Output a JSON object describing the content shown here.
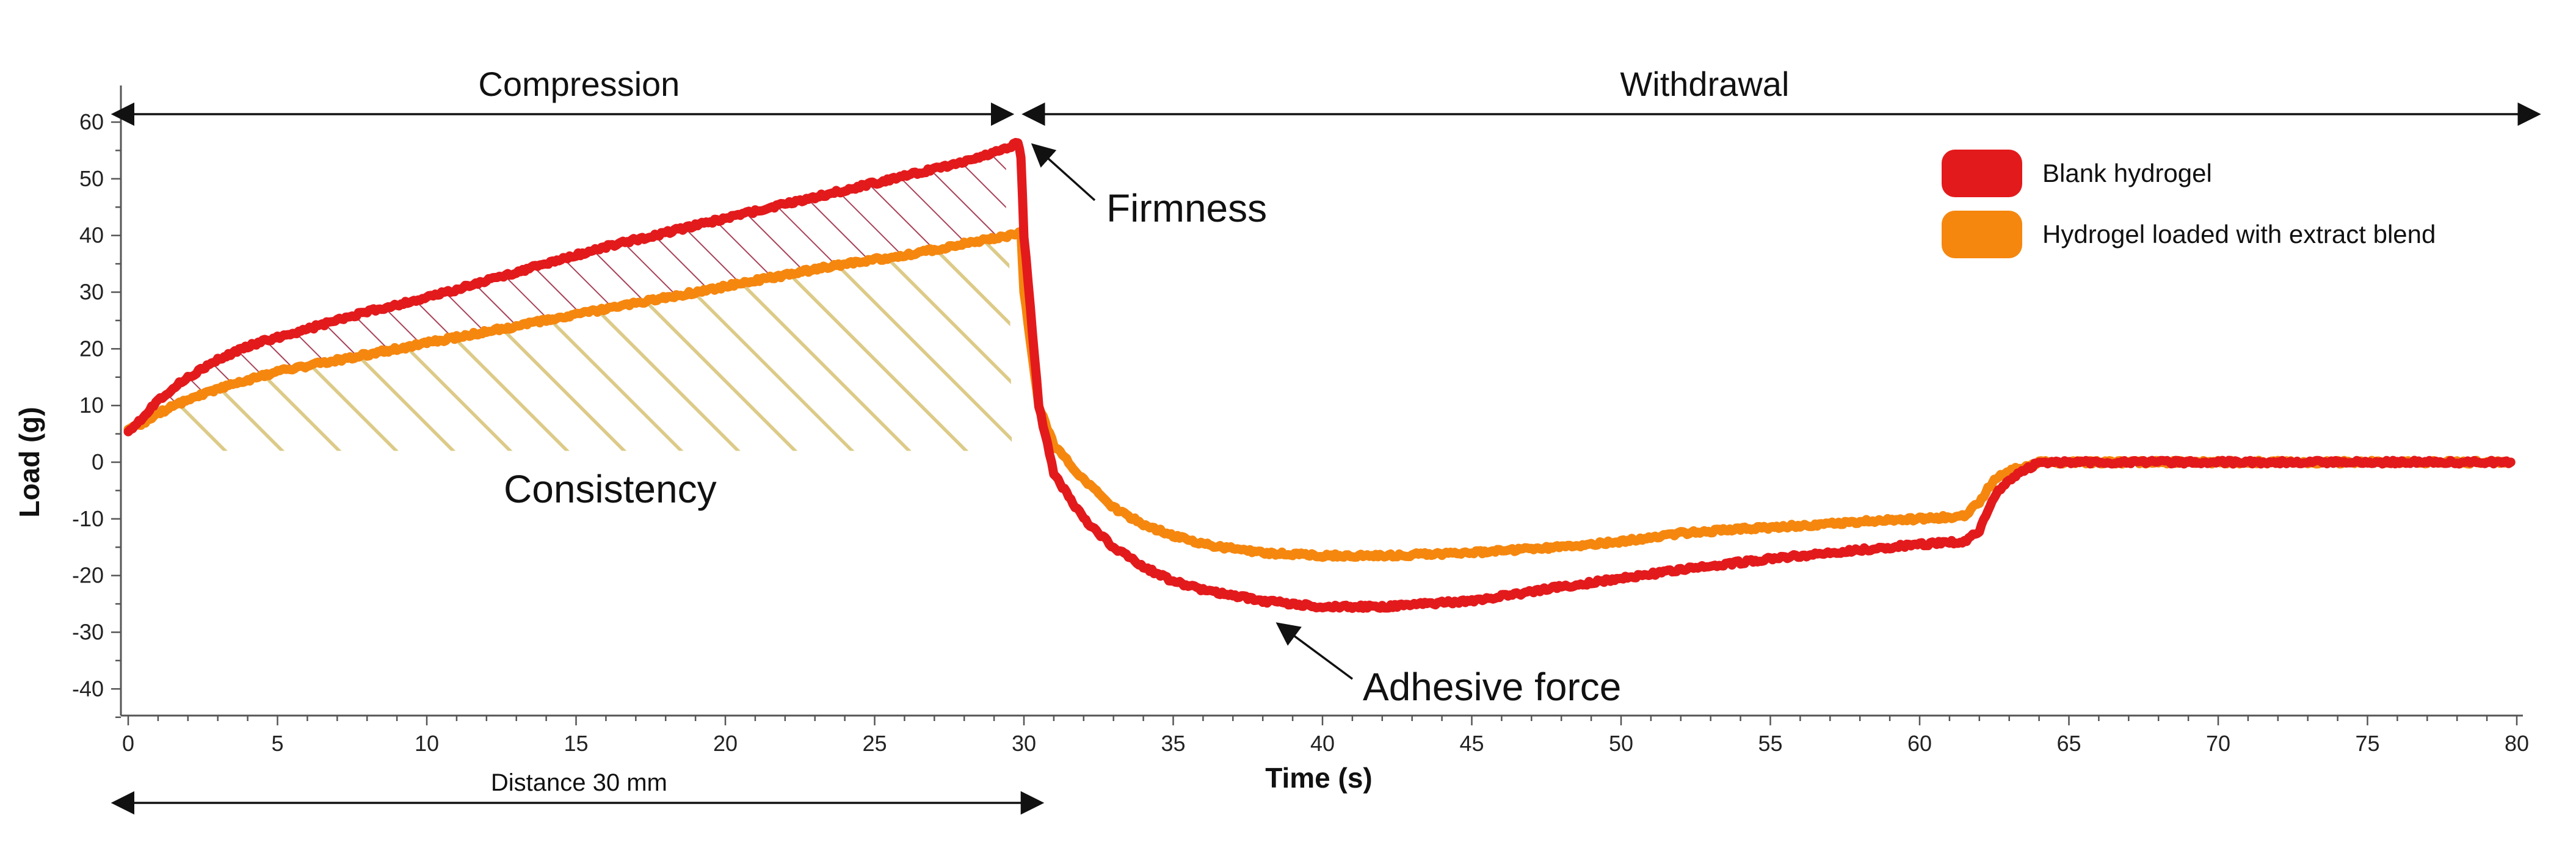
{
  "chart_data": {
    "type": "line",
    "title": "",
    "xlabel": "Time (s)",
    "ylabel": "Load (g)",
    "xlim": [
      0,
      80
    ],
    "ylim": [
      -45,
      62
    ],
    "xticks": [
      0,
      5,
      10,
      15,
      20,
      25,
      30,
      35,
      40,
      45,
      50,
      55,
      60,
      65,
      70,
      75,
      80
    ],
    "yticks": [
      60,
      50,
      40,
      30,
      20,
      10,
      0,
      -10,
      -20,
      -30,
      -40
    ],
    "grid": false,
    "legend_position": "top-right",
    "series": [
      {
        "name": "Blank hydrogel",
        "color": "#e31a1c",
        "x": [
          0,
          0.5,
          1,
          1.5,
          2,
          3,
          4,
          5,
          6,
          7,
          8,
          10,
          12,
          14,
          16,
          18,
          20,
          22,
          24,
          26,
          28,
          29.5,
          29.8,
          29.9,
          30,
          30.5,
          31,
          32,
          33,
          34,
          35,
          36,
          38,
          40,
          42,
          45,
          48,
          50,
          52,
          55,
          58,
          60,
          61.5,
          62,
          62.5,
          63,
          64,
          66,
          68,
          70,
          72,
          75,
          78,
          79.8
        ],
        "y": [
          5.5,
          8,
          11,
          13,
          15,
          18,
          20.5,
          22,
          23.5,
          25,
          26.5,
          29,
          32,
          35,
          38,
          40.5,
          43,
          45.5,
          48,
          50.5,
          53,
          55.5,
          56.5,
          54,
          40,
          10,
          -2,
          -10,
          -15,
          -18.5,
          -21,
          -22.5,
          -24.5,
          -25.5,
          -25.5,
          -24.5,
          -22,
          -20.5,
          -19,
          -17,
          -15.5,
          -14.5,
          -14,
          -12,
          -6,
          -3,
          0,
          0,
          0,
          0,
          0,
          0,
          0,
          0
        ]
      },
      {
        "name": "Hydrogel loaded with extract blend",
        "color": "#f5870f",
        "x": [
          0,
          0.5,
          1,
          1.5,
          2,
          3,
          4,
          5,
          6,
          7,
          8,
          10,
          12,
          14,
          16,
          18,
          20,
          22,
          24,
          26,
          28,
          29.5,
          29.9,
          30,
          30.5,
          31,
          32,
          33,
          34,
          35,
          36,
          38,
          40,
          42,
          45,
          48,
          50,
          52,
          55,
          58,
          60,
          61.5,
          62,
          62.5,
          63,
          64,
          66,
          68,
          70,
          72,
          75,
          78,
          79.8
        ],
        "y": [
          5.5,
          7,
          8.5,
          10,
          11,
          13,
          14.5,
          16,
          17,
          18,
          19,
          21,
          23,
          25,
          27,
          29,
          31,
          33,
          35,
          36.5,
          38.5,
          40,
          40.5,
          30,
          10,
          3,
          -3,
          -8,
          -11,
          -13,
          -14.5,
          -16,
          -16.5,
          -16.5,
          -16,
          -15,
          -14,
          -12.5,
          -11.5,
          -10.5,
          -10,
          -9.5,
          -7,
          -3,
          -1.5,
          0,
          0,
          0,
          0,
          0,
          0,
          0,
          0
        ]
      }
    ],
    "regions": [
      {
        "label": "Compression",
        "x_range": [
          0,
          30
        ]
      },
      {
        "label": "Withdrawal",
        "x_range": [
          30,
          80
        ]
      }
    ],
    "distance_label": "Distance 30 mm",
    "annotations": [
      {
        "label": "Firmness",
        "target_x": 29.8,
        "target_y": 56
      },
      {
        "label": "Consistency",
        "target_x": 15,
        "target_y": 0
      },
      {
        "label": "Adhesive force",
        "target_x": 38.5,
        "target_y": -28.5
      }
    ]
  }
}
